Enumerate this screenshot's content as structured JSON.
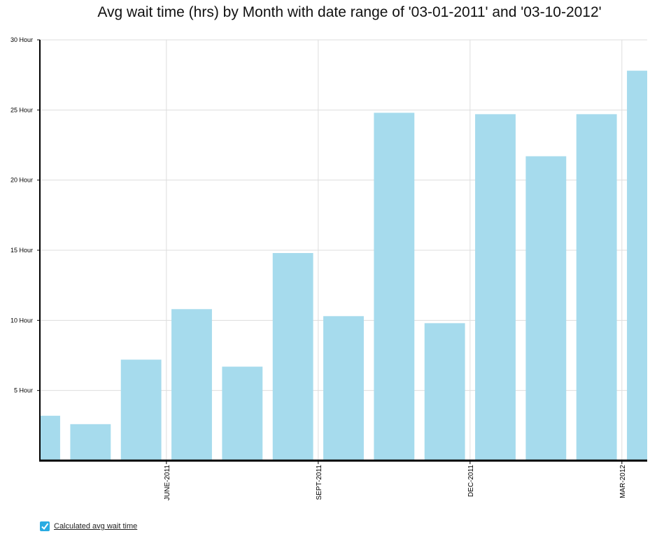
{
  "chart_data": {
    "type": "bar",
    "title": "Avg wait time (hrs) by Month with date range of '03-01-2011' and '03-10-2012'",
    "xlabel": "",
    "ylabel": "",
    "ylim": [
      0,
      30
    ],
    "yticks": [
      5,
      10,
      15,
      20,
      25,
      30
    ],
    "ytick_suffix": " Hour",
    "xtick_labels": [
      {
        "after_bar": 3,
        "label": "JUNE-2011"
      },
      {
        "after_bar": 6,
        "label": "SEPT-2011"
      },
      {
        "after_bar": 9,
        "label": "DEC-2011"
      },
      {
        "after_bar": 12,
        "label": "MAR-2012"
      }
    ],
    "values": [
      3.2,
      2.6,
      7.2,
      10.8,
      6.7,
      14.8,
      10.3,
      24.8,
      9.8,
      24.7,
      21.7,
      24.7,
      27.8
    ],
    "bar_color": "#a6dbed",
    "grid": true,
    "legend": {
      "label": "Calculated avg wait time",
      "position": "bottom-left",
      "checked": true
    },
    "series": [
      {
        "name": "Calculated avg wait time",
        "values": [
          3.2,
          2.6,
          7.2,
          10.8,
          6.7,
          14.8,
          10.3,
          24.8,
          9.8,
          24.7,
          21.7,
          24.7,
          27.8
        ]
      }
    ]
  }
}
